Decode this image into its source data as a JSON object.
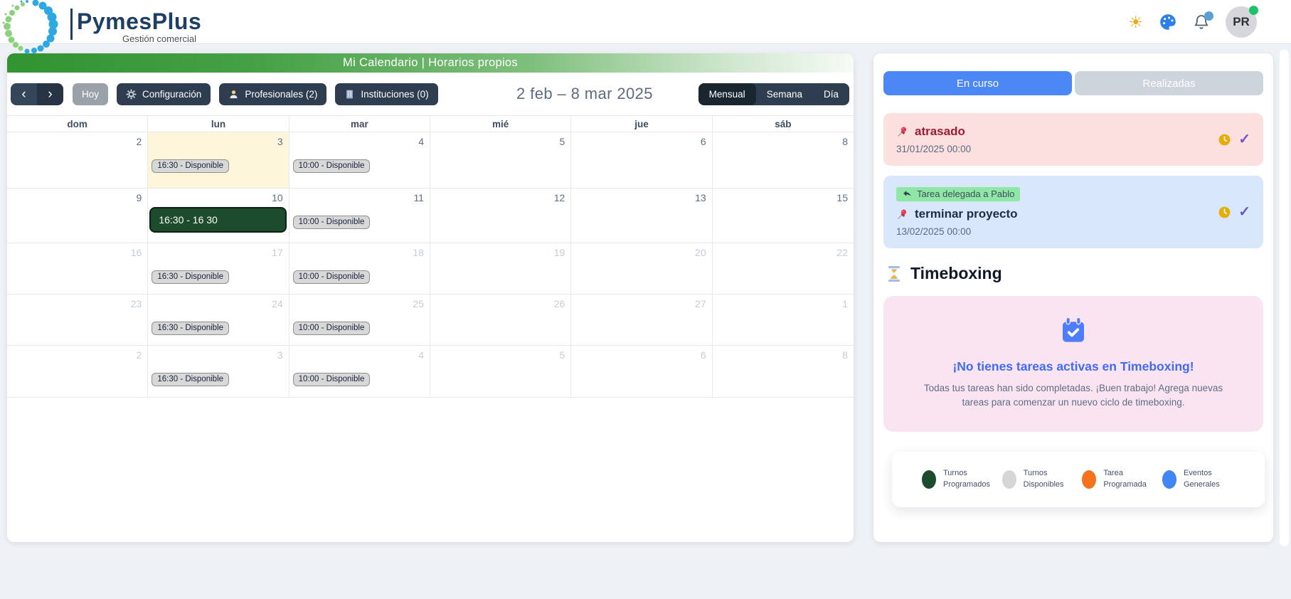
{
  "header": {
    "brand": {
      "name": "PymesPlus",
      "tagline": "Gestión comercial"
    },
    "avatar_initials": "PR",
    "icons": {
      "theme": "sun-icon",
      "appearance": "palette-icon",
      "notifications": "bell-icon",
      "status": "online-dot"
    }
  },
  "calendar": {
    "banner_title": "Mi Calendario | Horarios propios",
    "toolbar": {
      "prev_icon": "‹",
      "next_icon": "›",
      "today_label": "Hoy",
      "config_label": "Configuración",
      "config_icon": "gear-icon",
      "professionals_label": "Profesionales (2)",
      "professionals_icon": "person-icon",
      "institutions_label": "Instituciones (0)",
      "institutions_icon": "building-icon",
      "date_range": "2 feb – 8 mar 2025",
      "views": [
        {
          "label": "Mensual",
          "active": true
        },
        {
          "label": "Semana",
          "active": false
        },
        {
          "label": "Día",
          "active": false
        }
      ]
    },
    "day_headers": [
      "dom",
      "lun",
      "mar",
      "mié",
      "jue",
      "sáb"
    ],
    "weeks": [
      {
        "muted": false,
        "days": [
          {
            "num": "2"
          },
          {
            "num": "3",
            "today": true,
            "events": [
              {
                "type": "available",
                "label": "16:30 - Disponible"
              }
            ]
          },
          {
            "num": "4",
            "events": [
              {
                "type": "available",
                "label": "10:00 - Disponible"
              }
            ]
          },
          {
            "num": "5"
          },
          {
            "num": "6"
          },
          {
            "num": "8"
          }
        ]
      },
      {
        "muted": false,
        "days": [
          {
            "num": "9"
          },
          {
            "num": "10",
            "events": [
              {
                "type": "scheduled",
                "label": "16:30 - 16 30"
              }
            ]
          },
          {
            "num": "11",
            "events": [
              {
                "type": "available",
                "label": "10:00 - Disponible"
              }
            ]
          },
          {
            "num": "12"
          },
          {
            "num": "13"
          },
          {
            "num": "15"
          }
        ]
      },
      {
        "muted": true,
        "days": [
          {
            "num": "16"
          },
          {
            "num": "17",
            "events": [
              {
                "type": "available",
                "label": "16:30 - Disponible"
              }
            ]
          },
          {
            "num": "18",
            "events": [
              {
                "type": "available",
                "label": "10:00 - Disponible"
              }
            ]
          },
          {
            "num": "19"
          },
          {
            "num": "20"
          },
          {
            "num": "22"
          }
        ]
      },
      {
        "muted": true,
        "days": [
          {
            "num": "23"
          },
          {
            "num": "24",
            "events": [
              {
                "type": "available",
                "label": "16:30 - Disponible"
              }
            ]
          },
          {
            "num": "25",
            "events": [
              {
                "type": "available",
                "label": "10:00 - Disponible"
              }
            ]
          },
          {
            "num": "26"
          },
          {
            "num": "27"
          },
          {
            "num": "1"
          }
        ]
      },
      {
        "muted": true,
        "days": [
          {
            "num": "2"
          },
          {
            "num": "3",
            "events": [
              {
                "type": "available",
                "label": "16:30 - Disponible"
              }
            ]
          },
          {
            "num": "4",
            "events": [
              {
                "type": "available",
                "label": "10:00 - Disponible"
              }
            ]
          },
          {
            "num": "5"
          },
          {
            "num": "6"
          },
          {
            "num": "8"
          }
        ]
      }
    ]
  },
  "tasks_panel": {
    "tabs": [
      {
        "label": "En curso",
        "active": true
      },
      {
        "label": "Realizadas",
        "active": false
      }
    ],
    "tasks": [
      {
        "style": "overdue",
        "title": "atrasado",
        "datetime": "31/01/2025 00:00",
        "icons": [
          "pin-icon",
          "clock-icon",
          "check-icon"
        ]
      },
      {
        "style": "delegated",
        "chip": "Tarea delegada a Pablo",
        "title": "terminar proyecto",
        "datetime": "13/02/2025 00:00",
        "icons": [
          "delegate-icon",
          "pin-icon",
          "clock-icon",
          "check-icon"
        ]
      }
    ],
    "timeboxing": {
      "heading": "Timeboxing",
      "heading_icon": "hourglass-icon",
      "empty_icon": "calendar-check-icon",
      "empty_title": "¡No tienes tareas activas en Timeboxing!",
      "empty_body": "Todas tus tareas han sido completadas. ¡Buen trabajo! Agrega nuevas tareas para comenzar un nuevo ciclo de timeboxing."
    },
    "legend": [
      {
        "label": "Turnos Programados",
        "color": "#1d4c2c"
      },
      {
        "label": "Turnos Disponibles",
        "color": "#d6d6d6"
      },
      {
        "label": "Tarea Programada",
        "color": "#f4731c"
      },
      {
        "label": "Eventos Generales",
        "color": "#4285f4"
      }
    ]
  },
  "colors": {
    "accent_blue": "#4b87f5",
    "banner_green": "#319331",
    "scheduled_green": "#1d4c2c",
    "overdue_pink": "#fcdfdf",
    "delegated_blue": "#d9e7fa",
    "timeboxing_pink": "#fbe4f1",
    "check_purple": "#7251c9",
    "clock_amber": "#e5ad08"
  }
}
